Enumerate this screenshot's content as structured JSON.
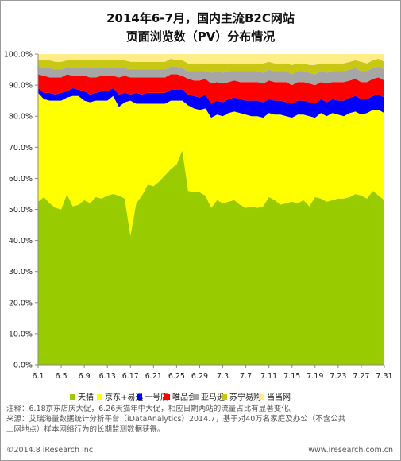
{
  "title_line1": "2014年6-7月，国内主流B2C网站",
  "title_line2": "页面浏览数（PV）分布情况",
  "notes": {
    "line1": "注释：6.18京东店庆大促，6.26天猫年中大促，相应日期两站的流量占比有显著变化。",
    "line2": "来源：艾瑞海量数据统计分析平台（iDataAnalytics）2014.7，基于对40万名家庭及办公（不含公共",
    "line3": "上网地点）样本网络行为的长期监测数据获得。"
  },
  "footer": {
    "copyright": "©2014.8 iResearch Inc.",
    "site": "www.iresearch.com.cn"
  },
  "chart_data": {
    "type": "area",
    "stacked": true,
    "x": [
      "6.1",
      "6.2",
      "6.3",
      "6.4",
      "6.5",
      "6.6",
      "6.7",
      "6.8",
      "6.9",
      "6.10",
      "6.11",
      "6.12",
      "6.13",
      "6.14",
      "6.15",
      "6.16",
      "6.17",
      "6.18",
      "6.19",
      "6.20",
      "6.21",
      "6.22",
      "6.23",
      "6.24",
      "6.25",
      "6.26",
      "6.27",
      "6.28",
      "6.29",
      "6.30",
      "7.1",
      "7.2",
      "7.3",
      "7.4",
      "7.5",
      "7.6",
      "7.7",
      "7.8",
      "7.9",
      "7.10",
      "7.11",
      "7.12",
      "7.13",
      "7.14",
      "7.15",
      "7.16",
      "7.17",
      "7.18",
      "7.19",
      "7.20",
      "7.21",
      "7.22",
      "7.23",
      "7.24",
      "7.25",
      "7.26",
      "7.27",
      "7.28",
      "7.29",
      "7.30",
      "7.31"
    ],
    "x_tick_labels": [
      "6.1",
      "6.5",
      "6.9",
      "6.13",
      "6.17",
      "6.21",
      "6.25",
      "6.29",
      "7.3",
      "7.7",
      "7.11",
      "7.15",
      "7.19",
      "7.23",
      "7.27",
      "7.31"
    ],
    "y_tick_labels": [
      "0.0%",
      "10.0%",
      "20.0%",
      "30.0%",
      "40.0%",
      "50.0%",
      "60.0%",
      "70.0%",
      "80.0%",
      "90.0%",
      "100.0%"
    ],
    "ylim": [
      0,
      100
    ],
    "grid": false,
    "legend_position": "bottom",
    "series": [
      {
        "name": "天猫",
        "color": "#99cc00",
        "values": [
          52.5,
          54.0,
          52.0,
          50.5,
          50.0,
          55.0,
          51.0,
          51.5,
          53.0,
          52.0,
          54.0,
          53.5,
          54.5,
          55.0,
          54.5,
          53.5,
          41.5,
          52.0,
          54.5,
          58.0,
          57.5,
          59.0,
          61.0,
          63.0,
          64.5,
          69.0,
          56.0,
          55.5,
          55.5,
          54.5,
          50.5,
          53.0,
          52.0,
          52.5,
          53.0,
          51.5,
          50.5,
          51.0,
          50.5,
          51.0,
          54.0,
          53.0,
          51.5,
          52.0,
          52.5,
          52.0,
          53.0,
          51.0,
          54.0,
          53.5,
          52.5,
          53.0,
          53.5,
          53.5,
          54.0,
          55.0,
          54.5,
          53.5,
          56.0,
          54.5,
          53.0
        ]
      },
      {
        "name": "京东+易迅",
        "color": "#ffff00",
        "values": [
          35.0,
          31.5,
          33.0,
          34.5,
          35.0,
          31.0,
          35.5,
          35.0,
          32.0,
          32.5,
          31.0,
          31.5,
          30.5,
          31.5,
          28.5,
          31.0,
          43.5,
          32.0,
          29.5,
          26.0,
          26.5,
          25.0,
          23.0,
          22.0,
          20.5,
          16.0,
          27.5,
          27.0,
          26.5,
          28.0,
          29.0,
          27.5,
          28.0,
          28.5,
          28.5,
          29.5,
          30.0,
          29.0,
          29.5,
          28.5,
          27.0,
          27.5,
          29.0,
          28.0,
          27.0,
          28.5,
          27.5,
          29.0,
          25.5,
          27.5,
          27.5,
          28.0,
          27.0,
          26.5,
          27.0,
          26.5,
          26.0,
          27.5,
          26.0,
          27.5,
          28.0
        ]
      },
      {
        "name": "一号店",
        "color": "#0000ff",
        "values": [
          1.5,
          2.0,
          2.5,
          2.0,
          2.5,
          2.0,
          2.5,
          2.0,
          3.0,
          2.5,
          2.5,
          3.0,
          3.0,
          2.5,
          4.0,
          3.0,
          2.0,
          3.5,
          3.0,
          3.5,
          3.5,
          3.5,
          3.5,
          3.5,
          3.5,
          3.5,
          3.5,
          4.0,
          4.0,
          4.5,
          4.5,
          4.5,
          4.5,
          4.5,
          4.5,
          4.5,
          4.5,
          5.0,
          5.0,
          5.0,
          4.5,
          4.5,
          4.5,
          4.5,
          4.5,
          4.5,
          4.5,
          4.5,
          4.5,
          4.5,
          4.5,
          4.5,
          4.5,
          5.0,
          5.0,
          5.0,
          5.0,
          4.5,
          4.5,
          5.0,
          5.0
        ]
      },
      {
        "name": "唯品会",
        "color": "#ff0000",
        "values": [
          4.5,
          5.5,
          5.0,
          5.5,
          5.0,
          5.5,
          4.0,
          4.5,
          5.0,
          5.5,
          5.0,
          5.0,
          5.0,
          4.0,
          5.5,
          5.5,
          5.5,
          5.0,
          5.5,
          5.0,
          5.0,
          5.0,
          5.0,
          5.0,
          5.0,
          4.5,
          5.0,
          5.0,
          5.5,
          5.0,
          6.5,
          6.0,
          6.0,
          5.5,
          5.5,
          5.5,
          6.0,
          6.0,
          6.0,
          6.0,
          6.0,
          6.0,
          6.0,
          6.5,
          6.0,
          6.0,
          6.0,
          6.0,
          6.0,
          5.5,
          6.0,
          5.5,
          6.0,
          6.0,
          5.5,
          5.5,
          5.5,
          5.5,
          5.5,
          5.5,
          5.5
        ]
      },
      {
        "name": "亚马逊",
        "color": "#a6a6a6",
        "values": [
          2.5,
          2.5,
          3.0,
          2.5,
          2.5,
          2.5,
          2.5,
          2.5,
          2.5,
          3.0,
          3.0,
          2.5,
          2.5,
          2.5,
          3.0,
          2.5,
          2.5,
          2.5,
          2.5,
          2.5,
          2.5,
          2.5,
          2.5,
          2.5,
          2.5,
          2.5,
          2.5,
          3.0,
          3.0,
          2.5,
          3.5,
          3.5,
          3.5,
          3.5,
          3.0,
          3.5,
          3.5,
          3.5,
          3.5,
          3.5,
          3.5,
          3.5,
          3.5,
          3.5,
          3.5,
          3.5,
          3.5,
          3.5,
          3.5,
          3.5,
          3.5,
          3.5,
          3.5,
          3.5,
          3.5,
          3.5,
          3.5,
          3.5,
          3.5,
          3.5,
          3.5
        ]
      },
      {
        "name": "苏宁易购",
        "color": "#c8c814",
        "values": [
          2.0,
          2.5,
          2.5,
          2.5,
          2.5,
          2.0,
          2.5,
          2.5,
          2.5,
          2.5,
          2.5,
          2.5,
          2.5,
          2.5,
          2.5,
          2.5,
          2.5,
          2.5,
          2.5,
          2.5,
          2.5,
          2.5,
          2.5,
          2.5,
          2.0,
          2.5,
          2.5,
          2.5,
          2.5,
          2.5,
          3.0,
          2.5,
          3.0,
          2.5,
          2.5,
          2.5,
          2.5,
          2.5,
          2.5,
          3.0,
          2.5,
          2.5,
          2.5,
          2.5,
          3.0,
          2.5,
          2.5,
          2.5,
          3.0,
          2.5,
          3.0,
          2.5,
          2.5,
          2.5,
          2.5,
          2.5,
          3.0,
          2.5,
          2.5,
          2.5,
          2.5
        ]
      },
      {
        "name": "当当网",
        "color": "#ffee88",
        "values": [
          2.0,
          2.0,
          2.0,
          2.5,
          2.5,
          2.0,
          2.0,
          2.0,
          2.0,
          2.0,
          2.0,
          2.0,
          2.0,
          2.0,
          2.0,
          2.0,
          2.5,
          2.5,
          2.5,
          2.5,
          2.5,
          2.5,
          2.5,
          2.0,
          2.0,
          2.0,
          3.0,
          3.0,
          3.0,
          3.0,
          3.0,
          3.0,
          3.0,
          3.0,
          3.0,
          3.0,
          3.0,
          3.0,
          3.0,
          3.0,
          2.5,
          3.0,
          3.0,
          3.0,
          3.5,
          3.0,
          3.0,
          3.5,
          3.5,
          3.0,
          3.0,
          3.5,
          3.5,
          3.0,
          3.0,
          2.0,
          2.5,
          3.0,
          2.0,
          2.0,
          3.0
        ]
      }
    ]
  }
}
